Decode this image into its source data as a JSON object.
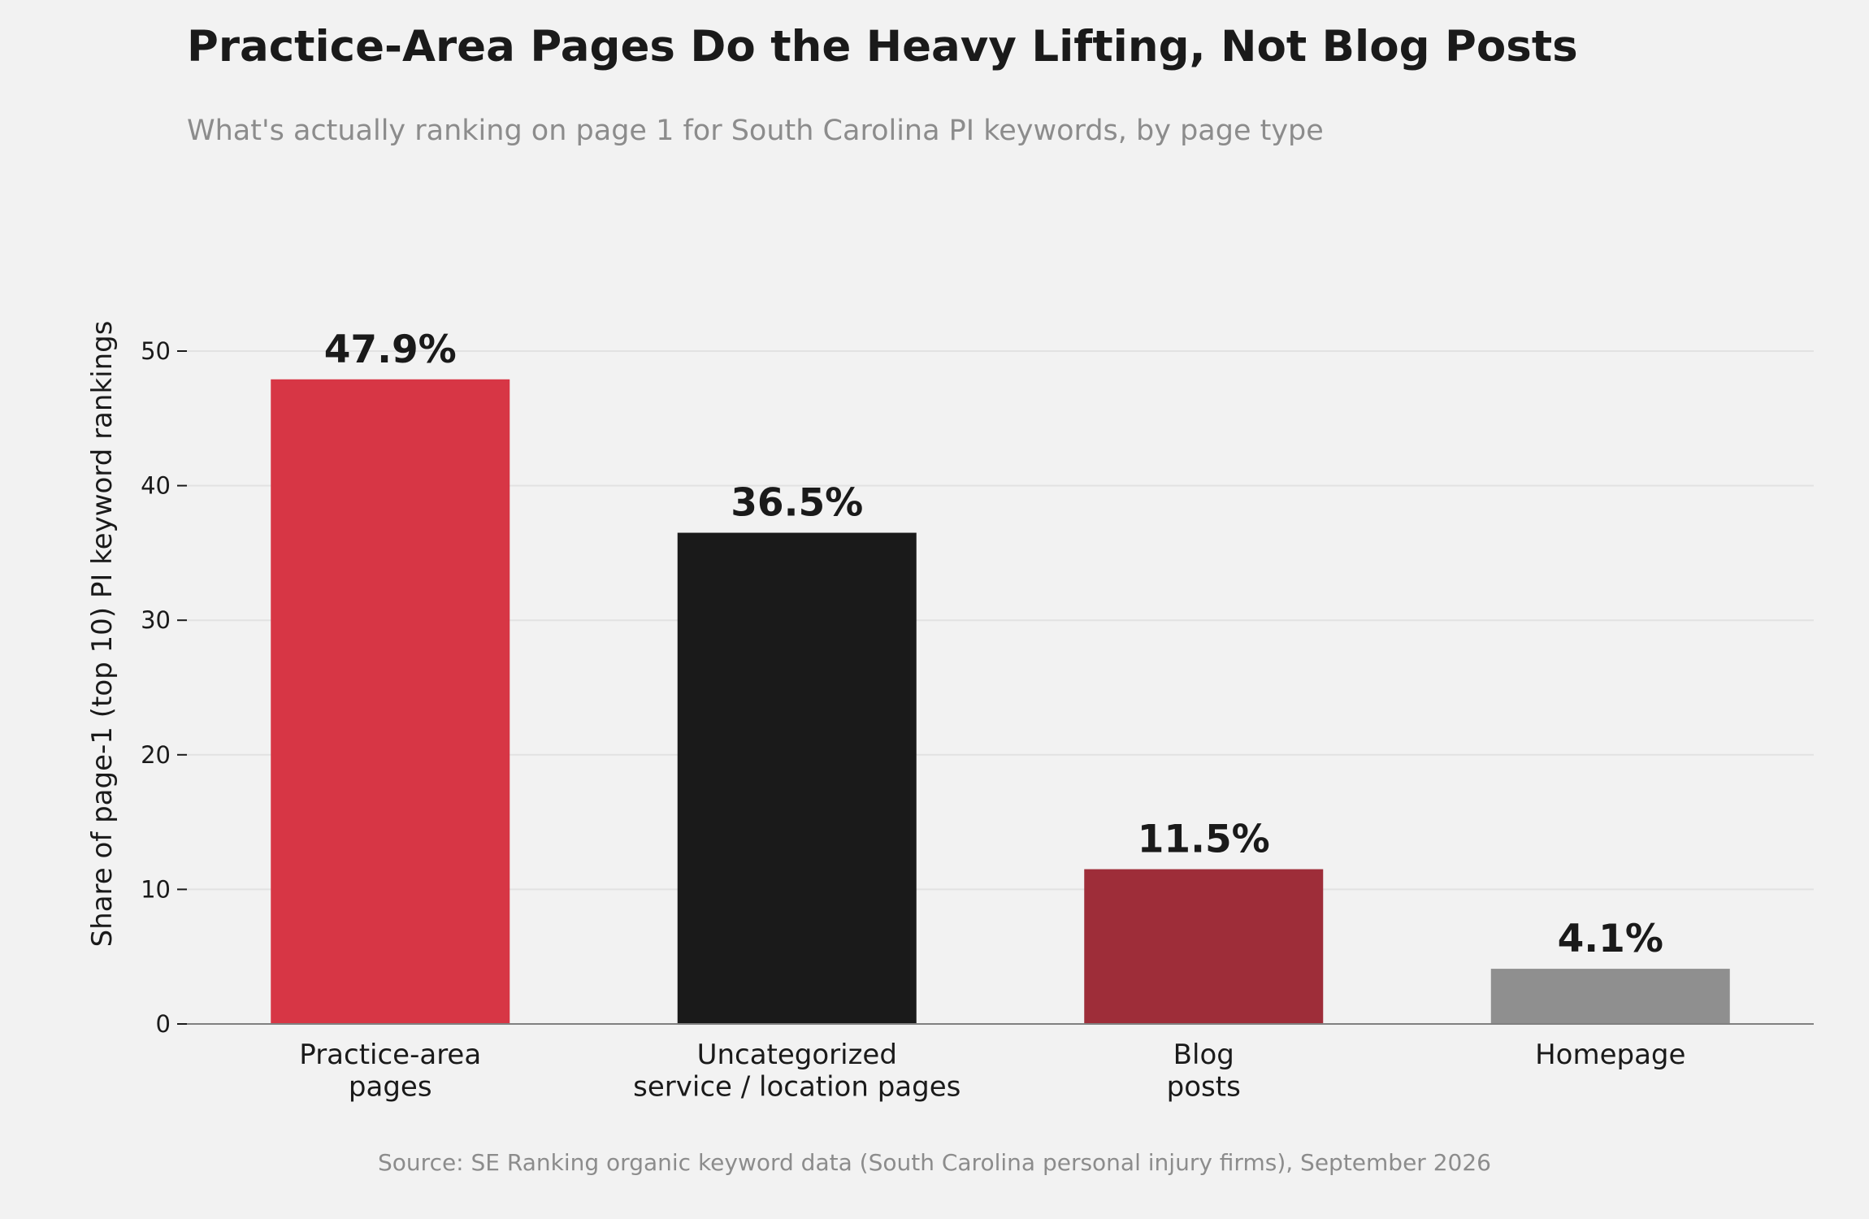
{
  "chart_data": {
    "type": "bar",
    "title": "Practice-Area Pages Do the Heavy Lifting, Not Blog Posts",
    "subtitle": "What's actually ranking on page 1 for South Carolina PI keywords, by page type",
    "ylabel": "Share of page-1 (top 10) PI keyword rankings",
    "xlabel": "",
    "categories": [
      [
        "Practice-area",
        "pages"
      ],
      [
        "Uncategorized",
        "service / location pages"
      ],
      [
        "Blog",
        "posts"
      ],
      [
        "Homepage"
      ]
    ],
    "values": [
      47.9,
      36.5,
      11.5,
      4.1
    ],
    "value_labels": [
      "47.9%",
      "36.5%",
      "11.5%",
      "4.1%"
    ],
    "colors": [
      "#d73645",
      "#1a1a1a",
      "#9e2d39",
      "#8f8f8f"
    ],
    "ylim": [
      0,
      50
    ],
    "yticks": [
      0,
      10,
      20,
      30,
      40,
      50
    ],
    "grid": "horizontal",
    "source": "Source: SE Ranking organic keyword data (South Carolina personal injury firms), September 2026"
  }
}
